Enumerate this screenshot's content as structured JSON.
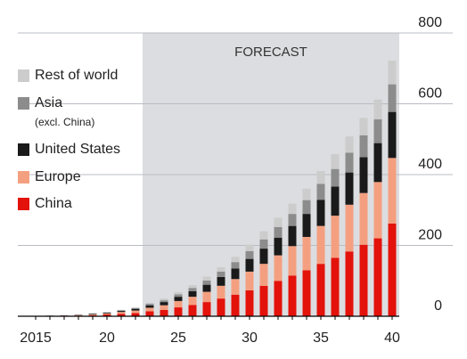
{
  "chart_data": {
    "type": "stacked_bar",
    "x": [
      2015,
      2016,
      2017,
      2018,
      2019,
      2020,
      2021,
      2022,
      2023,
      2024,
      2025,
      2026,
      2027,
      2028,
      2029,
      2030,
      2031,
      2032,
      2033,
      2034,
      2035,
      2036,
      2037,
      2038,
      2039,
      2040
    ],
    "series": [
      {
        "name": "China",
        "color": "#e3120b",
        "values": [
          0.5,
          1,
          1,
          2,
          3,
          5,
          7,
          9,
          14,
          18,
          25,
          32,
          40,
          50,
          61,
          73,
          86,
          100,
          115,
          130,
          148,
          165,
          183,
          202,
          220,
          262
        ]
      },
      {
        "name": "Europe",
        "color": "#f4a080",
        "values": [
          0.3,
          0.5,
          1,
          1,
          2,
          3,
          5,
          7,
          10,
          13,
          18,
          23,
          29,
          36,
          44,
          53,
          62,
          72,
          83,
          94,
          107,
          119,
          132,
          146,
          159,
          185
        ]
      },
      {
        "name": "United States",
        "color": "#1a1a1a",
        "values": [
          0.2,
          0.3,
          0.5,
          1,
          2,
          2,
          3,
          5,
          7,
          9,
          12,
          16,
          20,
          25,
          30,
          36,
          43,
          50,
          57,
          65,
          74,
          82,
          91,
          101,
          110,
          130
        ]
      },
      {
        "name": "Asia",
        "sublabel": "(excl. China)",
        "color": "#8c8c8c",
        "values": [
          0,
          0.1,
          0.3,
          0.5,
          0.6,
          1,
          2,
          2,
          4,
          5,
          7,
          9,
          12,
          15,
          18,
          22,
          26,
          30,
          34,
          39,
          45,
          50,
          56,
          62,
          67,
          78
        ]
      },
      {
        "name": "Rest of world",
        "color": "#cccccc",
        "values": [
          0,
          0.1,
          0.2,
          0.5,
          0.4,
          1,
          1,
          2,
          3,
          5,
          6,
          8,
          11,
          12,
          15,
          18,
          23,
          26,
          29,
          32,
          36,
          42,
          46,
          49,
          56,
          67
        ]
      }
    ],
    "xlim": [
      2013.75,
      2040.5
    ],
    "xticks": [
      2015,
      {
        "value": 2020,
        "label": "20"
      },
      {
        "value": 2025,
        "label": "25"
      },
      {
        "value": 2030,
        "label": "30"
      },
      {
        "value": 2035,
        "label": "35"
      },
      {
        "value": 2040,
        "label": "40"
      }
    ],
    "ylim": [
      0,
      800
    ],
    "yticks": [
      0,
      200,
      400,
      600,
      800
    ],
    "grid": true,
    "forecast": {
      "label": "FORECAST",
      "start": 2022.5
    }
  }
}
